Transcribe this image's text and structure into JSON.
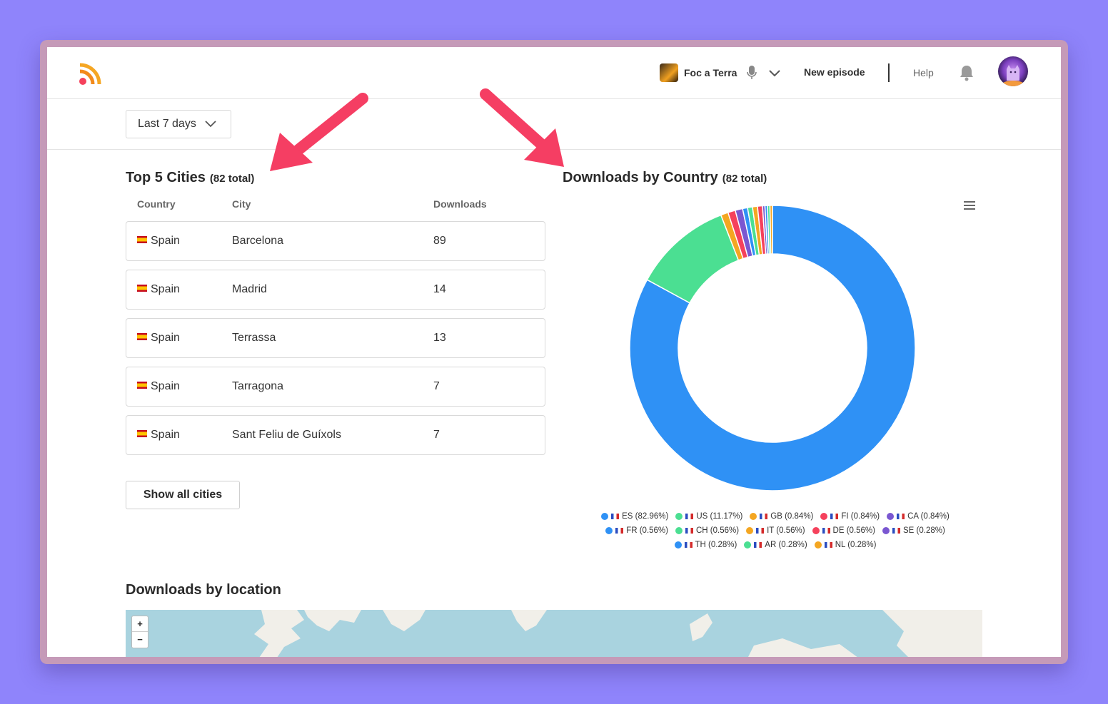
{
  "header": {
    "podcast_name": "Foc a Terra",
    "new_episode": "New episode",
    "help": "Help"
  },
  "filter": {
    "period": "Last 7 days"
  },
  "cities": {
    "title": "Top 5 Cities",
    "total": "(82 total)",
    "columns": [
      "Country",
      "City",
      "Downloads"
    ],
    "rows": [
      {
        "country": "Spain",
        "city": "Barcelona",
        "downloads": "89"
      },
      {
        "country": "Spain",
        "city": "Madrid",
        "downloads": "14"
      },
      {
        "country": "Spain",
        "city": "Terrassa",
        "downloads": "13"
      },
      {
        "country": "Spain",
        "city": "Tarragona",
        "downloads": "7"
      },
      {
        "country": "Spain",
        "city": "Sant Feliu de Guíxols",
        "downloads": "7"
      }
    ],
    "show_all": "Show all cities"
  },
  "country_chart": {
    "title": "Downloads by Country",
    "total": "(82 total)"
  },
  "chart_data": {
    "type": "pie",
    "donut": true,
    "categories": [
      "ES",
      "US",
      "GB",
      "FI",
      "CA",
      "FR",
      "CH",
      "IT",
      "DE",
      "SE",
      "TH",
      "AR",
      "NL"
    ],
    "values": [
      82.96,
      11.17,
      0.84,
      0.84,
      0.84,
      0.56,
      0.56,
      0.56,
      0.56,
      0.28,
      0.28,
      0.28,
      0.28
    ],
    "legend_labels": [
      "ES (82.96%)",
      "US (11.17%)",
      "GB (0.84%)",
      "FI (0.84%)",
      "CA (0.84%)",
      "FR (0.56%)",
      "CH (0.56%)",
      "IT (0.56%)",
      "DE (0.56%)",
      "SE (0.28%)",
      "TH (0.28%)",
      "AR (0.28%)",
      "NL (0.28%)"
    ],
    "colors": [
      "#2f91f5",
      "#4bdf92",
      "#f4a621",
      "#f5415c",
      "#7a57d1",
      "#2f91f5",
      "#4bdf92",
      "#f4a621",
      "#f5415c",
      "#7a57d1",
      "#2f91f5",
      "#4bdf92",
      "#f4a621"
    ],
    "legend_position": "bottom"
  },
  "location": {
    "title": "Downloads by location",
    "zoom_in": "+",
    "zoom_out": "−"
  },
  "colors": {
    "accent_arrow": "#f53e63",
    "rss_orange": "#f28a1c"
  }
}
